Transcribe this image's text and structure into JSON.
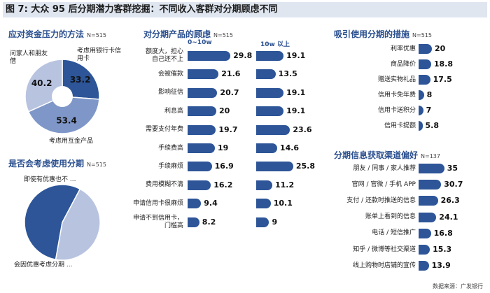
{
  "title": "图 7: 大众 95 后分期潜力客群挖掘：不同收入客群对分期顾虑不同",
  "source": "数据来源：广发银行",
  "colors": {
    "dark": "#2d5598",
    "mid": "#7f97c8",
    "light": "#b8c3e0",
    "accent": "#2a4f8f"
  },
  "chart_data": [
    {
      "type": "pie",
      "title": "应对资金压力的方法",
      "n": "N=515",
      "slices": [
        {
          "label": "考虑用银行卡信用卡",
          "value": 33.2,
          "color": "#2d5598"
        },
        {
          "label": "考虑用互金产品",
          "value": 53.4,
          "color": "#7f97c8"
        },
        {
          "label": "问家人和朋友借",
          "value": 40.2,
          "color": "#b8c3e0"
        }
      ],
      "labels_text": {
        "top_right": "考虑用银行卡信用卡",
        "top_left": "问家人和朋友借",
        "bottom": "考虑用互金产品"
      }
    },
    {
      "type": "pie",
      "title": "是否会考虑使用分期",
      "n": "N=515",
      "slices": [
        {
          "label": "会因优惠考虑分期",
          "value": 55,
          "color": "#2d5598"
        },
        {
          "label": "即使有优惠也不",
          "value": 45,
          "color": "#b8c3e0"
        }
      ],
      "labels_text": {
        "top": "即使有优惠也不 ...",
        "bottom": "会因优惠考虑分期 ..."
      }
    },
    {
      "type": "bar",
      "title": "对分期产品的顾虑",
      "n": "N=515",
      "categories": [
        "额度大，担心自己还不上",
        "会被催款",
        "影响征信",
        "利息高",
        "需要支付年费",
        "手续费高",
        "手续麻烦",
        "费用模糊不清",
        "申请信用卡很麻烦",
        "申请不到信用卡，门槛高"
      ],
      "series": [
        {
          "name": "0-10w",
          "values": [
            29.8,
            21.6,
            20.7,
            20,
            19.7,
            19,
            16.9,
            16.2,
            9.4,
            8.2
          ]
        },
        {
          "name": "10w 以上",
          "values": [
            19.1,
            13.5,
            19.1,
            19.1,
            23.6,
            14.6,
            25.8,
            11.2,
            10.1,
            9
          ]
        }
      ],
      "series_labels": [
        "0~10w",
        "10w 以上"
      ],
      "category_display": [
        [
          "额度大，担心",
          "自己还不上"
        ],
        [
          "会被催款"
        ],
        [
          "影响征信"
        ],
        [
          "利息高"
        ],
        [
          "需要支付年费"
        ],
        [
          "手续费高"
        ],
        [
          "手续麻烦"
        ],
        [
          "费用模糊不清"
        ],
        [
          "申请信用卡很麻烦"
        ],
        [
          "申请不到信用卡，",
          "门槛高"
        ]
      ]
    },
    {
      "type": "bar",
      "title": "吸引使用分期的措施",
      "n": "N=515",
      "categories": [
        "利率优惠",
        "商品降价",
        "赠送实物礼品",
        "信用卡免年费",
        "信用卡送积分",
        "信用卡提额"
      ],
      "values": [
        20,
        18.8,
        17.5,
        8,
        7,
        5.8
      ]
    },
    {
      "type": "bar",
      "title": "分期信息获取渠道偏好",
      "n": "N=137",
      "categories": [
        "朋友 / 同事 / 家人推荐",
        "官网 / 官微 / 手机 APP",
        "支付 / 还款时推送的信息",
        "账单上看到的信息",
        "电话 / 短信推广",
        "知乎 / 微博等社交渠道",
        "线上购物时店铺的宣传"
      ],
      "values": [
        35,
        30.7,
        26.3,
        24.1,
        16.8,
        15.3,
        13.9
      ]
    }
  ]
}
